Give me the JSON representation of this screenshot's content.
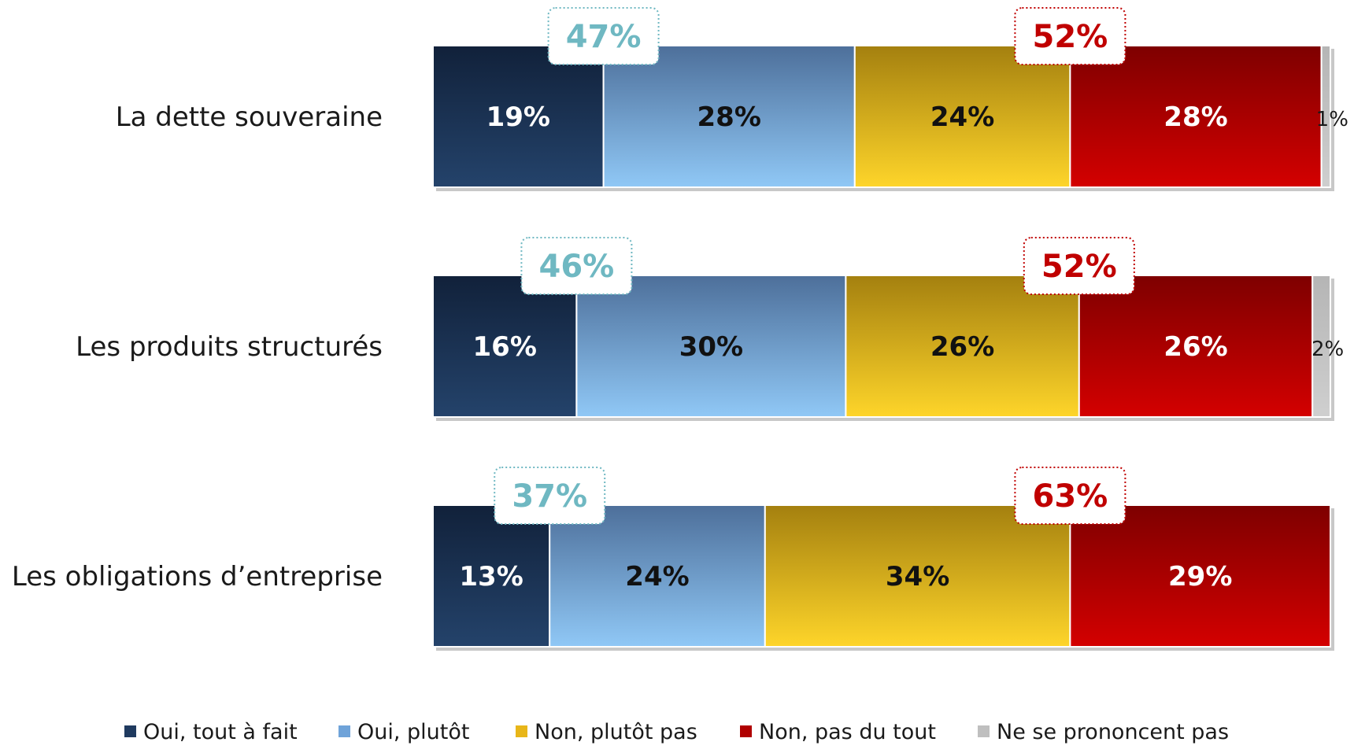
{
  "chart_data": {
    "type": "bar",
    "orientation": "horizontal",
    "stacked": true,
    "percent": true,
    "categories": [
      "La dette souveraine",
      "Les produits structurés",
      "Les obligations d’entreprise"
    ],
    "series": [
      {
        "name": "Oui, tout à fait",
        "values": [
          19,
          16,
          13
        ],
        "color": "#1f3a5f"
      },
      {
        "name": "Oui, plutôt",
        "values": [
          28,
          30,
          24
        ],
        "color": "#6fa3d9"
      },
      {
        "name": "Non, plutôt pas",
        "values": [
          24,
          26,
          34
        ],
        "color": "#e8b619"
      },
      {
        "name": "Non, pas du tout",
        "values": [
          28,
          26,
          29
        ],
        "color": "#b00000"
      },
      {
        "name": "Ne se prononcent pas",
        "values": [
          1,
          2,
          0
        ],
        "color": "#bfbfbf"
      }
    ],
    "totals_oui": [
      47,
      46,
      37
    ],
    "totals_non": [
      52,
      52,
      63
    ],
    "oui_total_color": "#6fb8c2",
    "non_total_color": "#c00000",
    "legend_position": "bottom",
    "grid": false
  }
}
